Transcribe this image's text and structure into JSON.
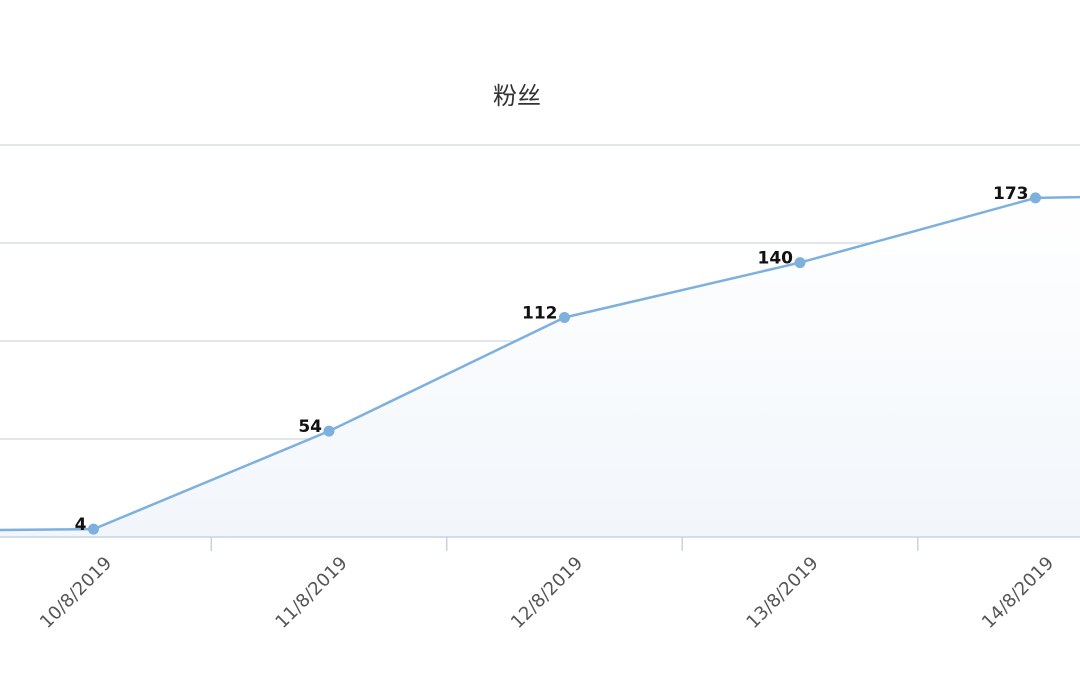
{
  "chart_data": {
    "type": "line",
    "title": "粉丝",
    "categories": [
      "",
      "10/8/2019",
      "11/8/2019",
      "12/8/2019",
      "13/8/2019",
      "14/8/2019",
      ""
    ],
    "series": [
      {
        "values": [
          3,
          4,
          54,
          112,
          140,
          173,
          175
        ]
      }
    ],
    "ylim": [
      0,
      200
    ],
    "grid": true,
    "colors": {
      "line": "#7eb0de",
      "point": "#7eb0de",
      "area": "#f2f6fb"
    }
  }
}
